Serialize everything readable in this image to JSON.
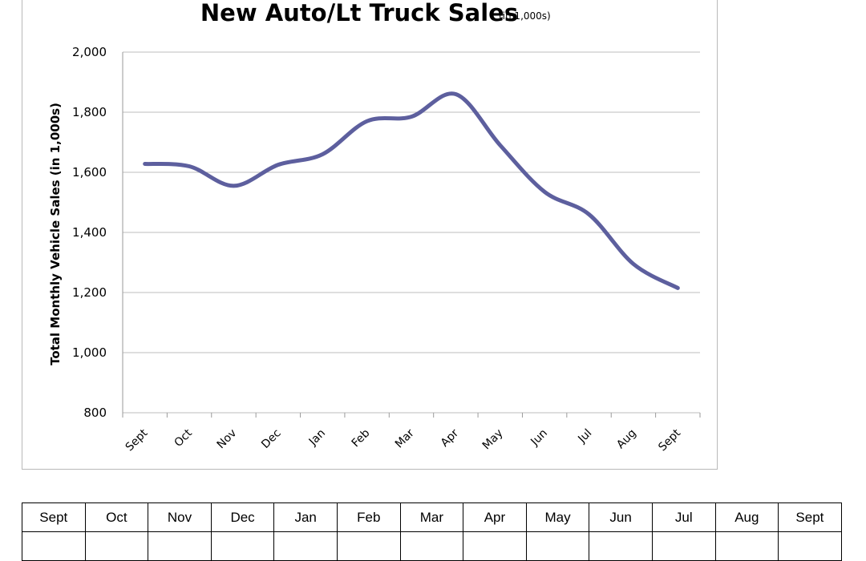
{
  "chart_data": {
    "type": "line",
    "title": "New Auto/Lt Truck Sales",
    "subtitle": "(in 1,000s)",
    "xlabel": "",
    "ylabel": "Total Monthly Vehicle Sales (in 1,000s)",
    "ylim": [
      800,
      2000
    ],
    "yticks": [
      800,
      1000,
      1200,
      1400,
      1600,
      1800,
      2000
    ],
    "ytick_labels": [
      "800",
      "1,000",
      "1,200",
      "1,400",
      "1,600",
      "1,800",
      "2,000"
    ],
    "categories": [
      "Sept",
      "Oct",
      "Nov",
      "Dec",
      "Jan",
      "Feb",
      "Mar",
      "Apr",
      "May",
      "Jun",
      "Jul",
      "Aug",
      "Sept"
    ],
    "series": [
      {
        "values": [
          1628,
          1620,
          1555,
          1625,
          1660,
          1770,
          1785,
          1860,
          1690,
          1535,
          1460,
          1295,
          1215
        ]
      }
    ],
    "grid": true,
    "legend": "none",
    "line_color": "#5d5f9e"
  },
  "table": {
    "headers": [
      "Sept",
      "Oct",
      "Nov",
      "Dec",
      "Jan",
      "Feb",
      "Mar",
      "Apr",
      "May",
      "Jun",
      "Jul",
      "Aug",
      "Sept"
    ]
  }
}
